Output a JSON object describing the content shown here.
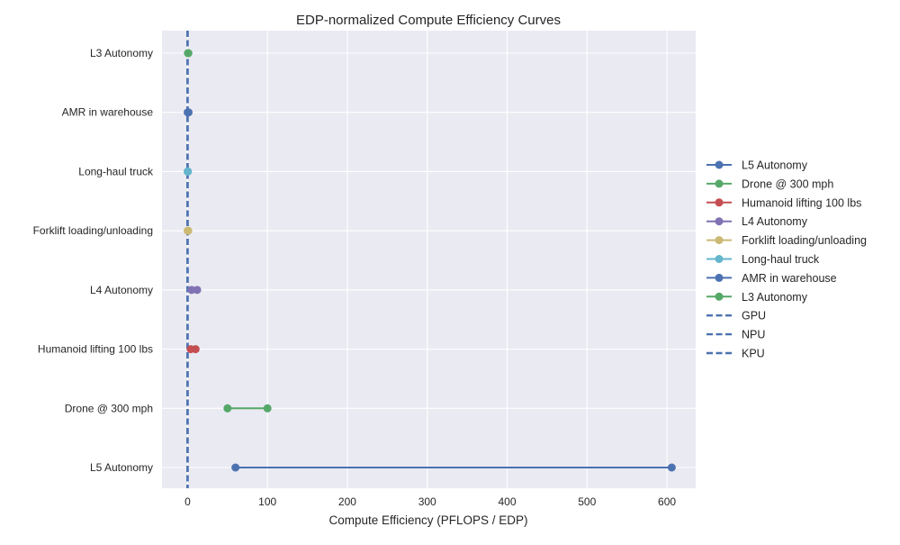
{
  "chart_data": {
    "type": "line",
    "title": "EDP-normalized Compute Efficiency Curves",
    "xlabel": "Compute Efficiency (PFLOPS / EDP)",
    "ylabel": "",
    "xlim": [
      -32,
      636
    ],
    "x_ticks": [
      0,
      100,
      200,
      300,
      400,
      500,
      600
    ],
    "categories": [
      "L5 Autonomy",
      "Drone @ 300 mph",
      "Humanoid lifting 100 lbs",
      "L4 Autonomy",
      "Forklift loading/unloading",
      "Long-haul truck",
      "AMR in warehouse",
      "L3 Autonomy"
    ],
    "grid": true,
    "legend_position": "center-right",
    "series": [
      {
        "name": "L5 Autonomy",
        "category": "L5 Autonomy",
        "x": [
          60,
          606
        ],
        "color": "#4c72b0"
      },
      {
        "name": "Drone @ 300 mph",
        "category": "Drone @ 300 mph",
        "x": [
          50,
          100
        ],
        "color": "#55a868"
      },
      {
        "name": "Humanoid lifting 100 lbs",
        "category": "Humanoid lifting 100 lbs",
        "x": [
          4,
          10
        ],
        "color": "#c44e52"
      },
      {
        "name": "L4 Autonomy",
        "category": "L4 Autonomy",
        "x": [
          5,
          12
        ],
        "color": "#8172b3"
      },
      {
        "name": "Forklift loading/unloading",
        "category": "Forklift loading/unloading",
        "x": [
          0.2,
          0.8
        ],
        "color": "#ccb974"
      },
      {
        "name": "Long-haul truck",
        "category": "Long-haul truck",
        "x": [
          0.1,
          0.5
        ],
        "color": "#64b5cd"
      },
      {
        "name": "AMR in warehouse",
        "category": "AMR in warehouse",
        "x": [
          0.2,
          1.2
        ],
        "color": "#4c72b0"
      },
      {
        "name": "L3 Autonomy",
        "category": "L3 Autonomy",
        "x": [
          0.5,
          1
        ],
        "color": "#55a868"
      }
    ],
    "reference_lines": [
      {
        "name": "GPU",
        "x": 0,
        "color": "#4c72b0",
        "style": "dashed"
      },
      {
        "name": "NPU",
        "x": 0,
        "color": "#4c72b0",
        "style": "dashed"
      },
      {
        "name": "KPU",
        "x": 0,
        "color": "#4c72b0",
        "style": "dashed"
      }
    ]
  }
}
